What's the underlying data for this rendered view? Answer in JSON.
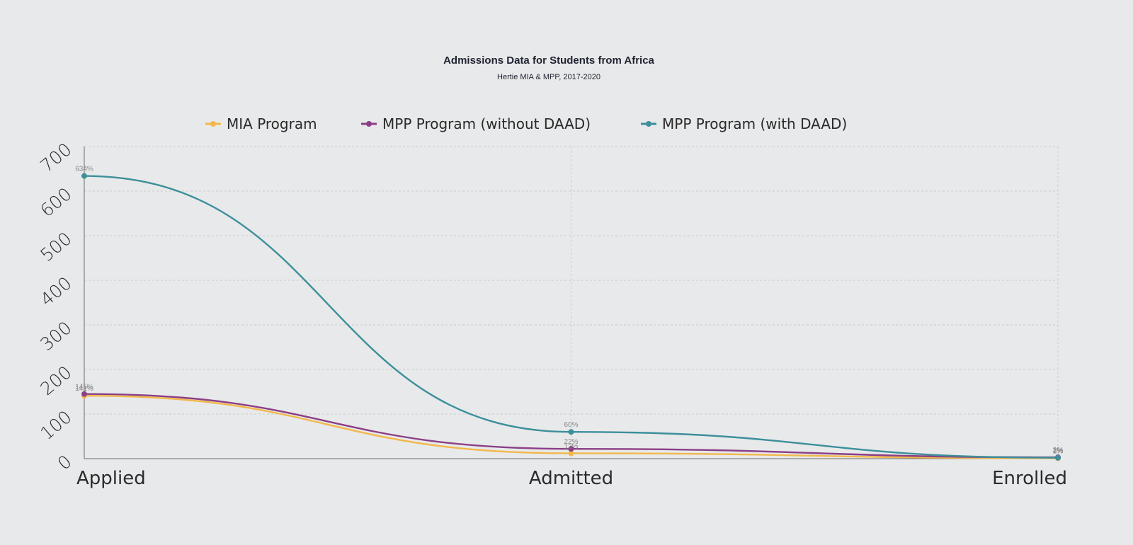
{
  "chart_data": {
    "type": "line",
    "title": "Admissions Data for Students from Africa",
    "subtitle": "Hertie MIA & MPP, 2017-2020",
    "categories": [
      "Applied",
      "Admitted",
      "Enrolled"
    ],
    "ylim": [
      0,
      700
    ],
    "yticks": [
      0,
      100,
      200,
      300,
      400,
      500,
      600,
      700
    ],
    "grid": true,
    "legend_position": "top-center",
    "xlabel": "",
    "ylabel": "",
    "series": [
      {
        "name": "MIA Program",
        "color": "#f2b84b",
        "values": [
          141,
          12,
          1
        ],
        "labels": [
          "141%",
          "12%",
          "1%"
        ]
      },
      {
        "name": "MPP Program (without DAAD)",
        "color": "#8b3f86",
        "values": [
          145,
          22,
          3
        ],
        "labels": [
          "145%",
          "22%",
          "3%"
        ]
      },
      {
        "name": "MPP Program (with DAAD)",
        "color": "#3c8f9b",
        "values": [
          634,
          60,
          2
        ],
        "labels": [
          "634%",
          "60%",
          "2%"
        ]
      }
    ]
  }
}
